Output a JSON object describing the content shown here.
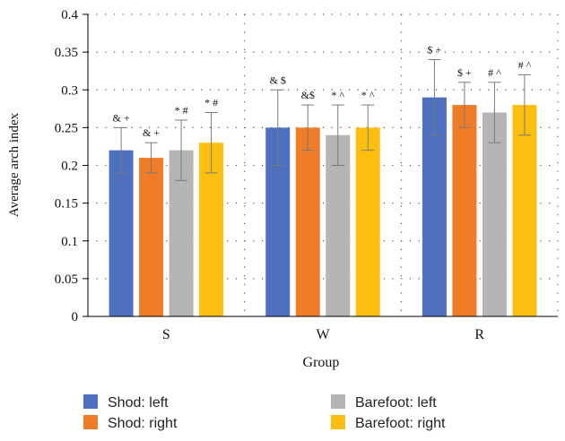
{
  "chart_data": {
    "type": "bar",
    "categories": [
      "S",
      "W",
      "R"
    ],
    "xlabel": "Group",
    "ylabel": "Average arch index",
    "ylim": [
      0,
      0.4
    ],
    "yticks": [
      "0",
      "0.05",
      "0.1",
      "0.15",
      "0.2",
      "0.25",
      "0.3",
      "0.35",
      "0.4"
    ],
    "grid": "dotted",
    "legend_position": "bottom",
    "series": [
      {
        "name": "Shod: left",
        "color": "#4f6fbf",
        "values": [
          0.22,
          0.25,
          0.29
        ],
        "errors": [
          0.03,
          0.05,
          0.05
        ],
        "annotations": [
          "& +",
          "& $",
          "$ +"
        ]
      },
      {
        "name": "Shod: right",
        "color": "#ef7d28",
        "values": [
          0.21,
          0.25,
          0.28
        ],
        "errors": [
          0.02,
          0.03,
          0.03
        ],
        "annotations": [
          "& +",
          "&$",
          "$ +"
        ]
      },
      {
        "name": "Barefoot: left",
        "color": "#b5b5b5",
        "values": [
          0.22,
          0.24,
          0.27
        ],
        "errors": [
          0.04,
          0.04,
          0.04
        ],
        "annotations": [
          "* #",
          "* ^",
          "# ^"
        ]
      },
      {
        "name": "Barefoot: right",
        "color": "#fcbf10",
        "values": [
          0.23,
          0.25,
          0.28
        ],
        "errors": [
          0.04,
          0.03,
          0.04
        ],
        "annotations": [
          "* #",
          "* ^",
          "# ^"
        ]
      }
    ]
  }
}
